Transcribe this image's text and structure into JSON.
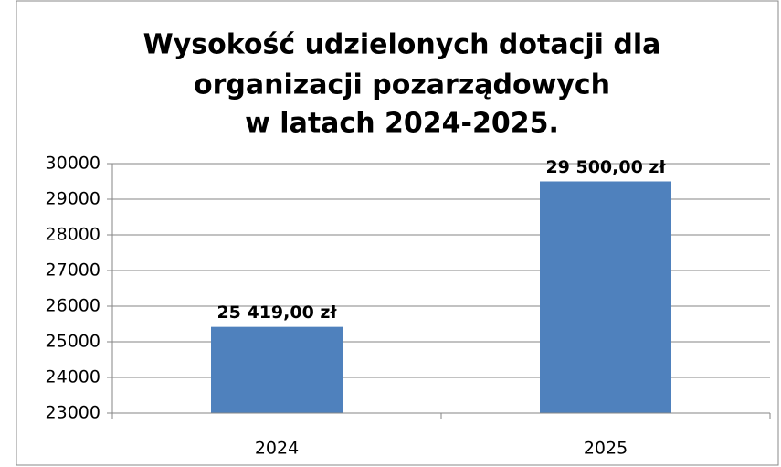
{
  "chart_data": {
    "type": "bar",
    "title": [
      "Wysokość udzielonych dotacji dla",
      "organizacji pozarządowych",
      "w latach 2024-2025."
    ],
    "categories": [
      "2024",
      "2025"
    ],
    "values": [
      25419,
      29500
    ],
    "value_labels": [
      "25 419,00 zł",
      "29 500,00 zł"
    ],
    "color": "#4f81bd",
    "ylim": [
      23000,
      30000
    ],
    "yticks": [
      23000,
      24000,
      25000,
      26000,
      27000,
      28000,
      29000,
      30000
    ],
    "grid": true
  }
}
